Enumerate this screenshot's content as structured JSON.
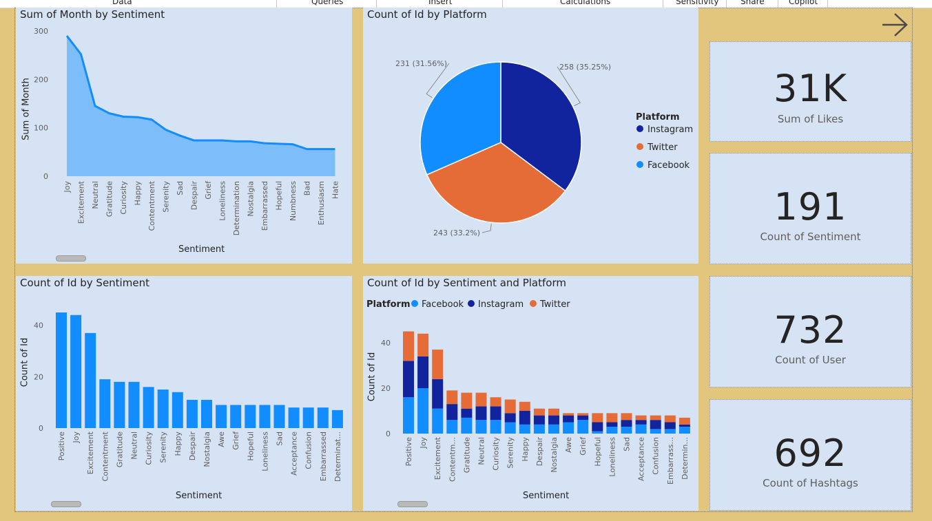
{
  "ribbon": {
    "items": [
      "Data",
      "Queries",
      "Insert",
      "Calculations",
      "Sensitivity",
      "Share",
      "Copilot"
    ]
  },
  "colors": {
    "facebook": "#118dff",
    "instagram": "#12239e",
    "twitter": "#e66c37",
    "area": "#118dff",
    "panel": "#d6e3f4",
    "background": "#e2c67e"
  },
  "navigation": {
    "arrow_icon": "arrow-right-icon"
  },
  "cards": [
    {
      "value": "31K",
      "label": "Sum of Likes"
    },
    {
      "value": "191",
      "label": "Count of Sentiment"
    },
    {
      "value": "732",
      "label": "Count of User"
    },
    {
      "value": "692",
      "label": "Count of Hashtags"
    }
  ],
  "chart_data": [
    {
      "type": "area",
      "title": "Sum of Month by Sentiment",
      "xlabel": "Sentiment",
      "ylabel": "Sum of Month",
      "ylim": [
        0,
        300
      ],
      "yticks": [
        0,
        100,
        200,
        300
      ],
      "categories": [
        "Joy",
        "Excitement",
        "Neutral",
        "Gratitude",
        "Curiosity",
        "Happy",
        "Contentment",
        "Serenity",
        "Sad",
        "Despair",
        "Grief",
        "Loneliness",
        "Determination",
        "Nostalgia",
        "Embarrassed",
        "Hopeful",
        "Numbness",
        "Bad",
        "Enthusiasm",
        "Hate"
      ],
      "values": [
        290,
        252,
        145,
        130,
        123,
        122,
        117,
        96,
        84,
        74,
        74,
        74,
        72,
        72,
        68,
        67,
        66,
        56,
        56,
        56
      ]
    },
    {
      "type": "pie",
      "title": "Count of Id by Platform",
      "legend_title": "Platform",
      "legend_position": "right",
      "slices": [
        {
          "name": "Instagram",
          "value": 258,
          "label": "258 (35.25%)"
        },
        {
          "name": "Twitter",
          "value": 243,
          "label": "243 (33.2%)"
        },
        {
          "name": "Facebook",
          "value": 231,
          "label": "231 (31.56%)"
        }
      ]
    },
    {
      "type": "bar",
      "title": "Count of Id by Sentiment",
      "xlabel": "Sentiment",
      "ylabel": "Count of Id",
      "ylim": [
        0,
        45
      ],
      "yticks": [
        0,
        20,
        40
      ],
      "categories": [
        "Positive",
        "Joy",
        "Excitement",
        "Contentment",
        "Gratitude",
        "Neutral",
        "Curiosity",
        "Serenity",
        "Happy",
        "Despair",
        "Nostalgia",
        "Awe",
        "Grief",
        "Hopeful",
        "Loneliness",
        "Sad",
        "Acceptance",
        "Confusion",
        "Embarrassed",
        "Determinat..."
      ],
      "values": [
        45,
        44,
        37,
        19,
        18,
        18,
        16,
        15,
        14,
        11,
        11,
        9,
        9,
        9,
        9,
        9,
        8,
        8,
        8,
        7
      ]
    },
    {
      "type": "bar",
      "stacked": true,
      "title": "Count of Id by Sentiment and Platform",
      "xlabel": "Sentiment",
      "ylabel": "Count of Id",
      "legend_title": "Platform",
      "legend_position": "top-left",
      "ylim": [
        0,
        45
      ],
      "yticks": [
        0,
        20,
        40
      ],
      "categories": [
        "Positive",
        "Joy",
        "Excitement",
        "Contentm...",
        "Gratitude",
        "Neutral",
        "Curiosity",
        "Serenity",
        "Happy",
        "Despair",
        "Nostalgia",
        "Awe",
        "Grief",
        "Hopeful",
        "Loneliness",
        "Sad",
        "Acceptance",
        "Confusion",
        "Embarrass...",
        "Determin..."
      ],
      "series": [
        {
          "name": "Facebook",
          "values": [
            16,
            20,
            11,
            6,
            7,
            6,
            6,
            5,
            4,
            4,
            4,
            5,
            6,
            1,
            3,
            3,
            4,
            2,
            2,
            3
          ]
        },
        {
          "name": "Instagram",
          "values": [
            16,
            14,
            13,
            7,
            4,
            6,
            6,
            4,
            6,
            4,
            4,
            3,
            2,
            4,
            2,
            3,
            2,
            4,
            3,
            1
          ]
        },
        {
          "name": "Twitter",
          "values": [
            13,
            10,
            13,
            6,
            7,
            6,
            4,
            6,
            4,
            3,
            3,
            1,
            1,
            4,
            4,
            3,
            2,
            2,
            3,
            3
          ]
        }
      ]
    }
  ]
}
